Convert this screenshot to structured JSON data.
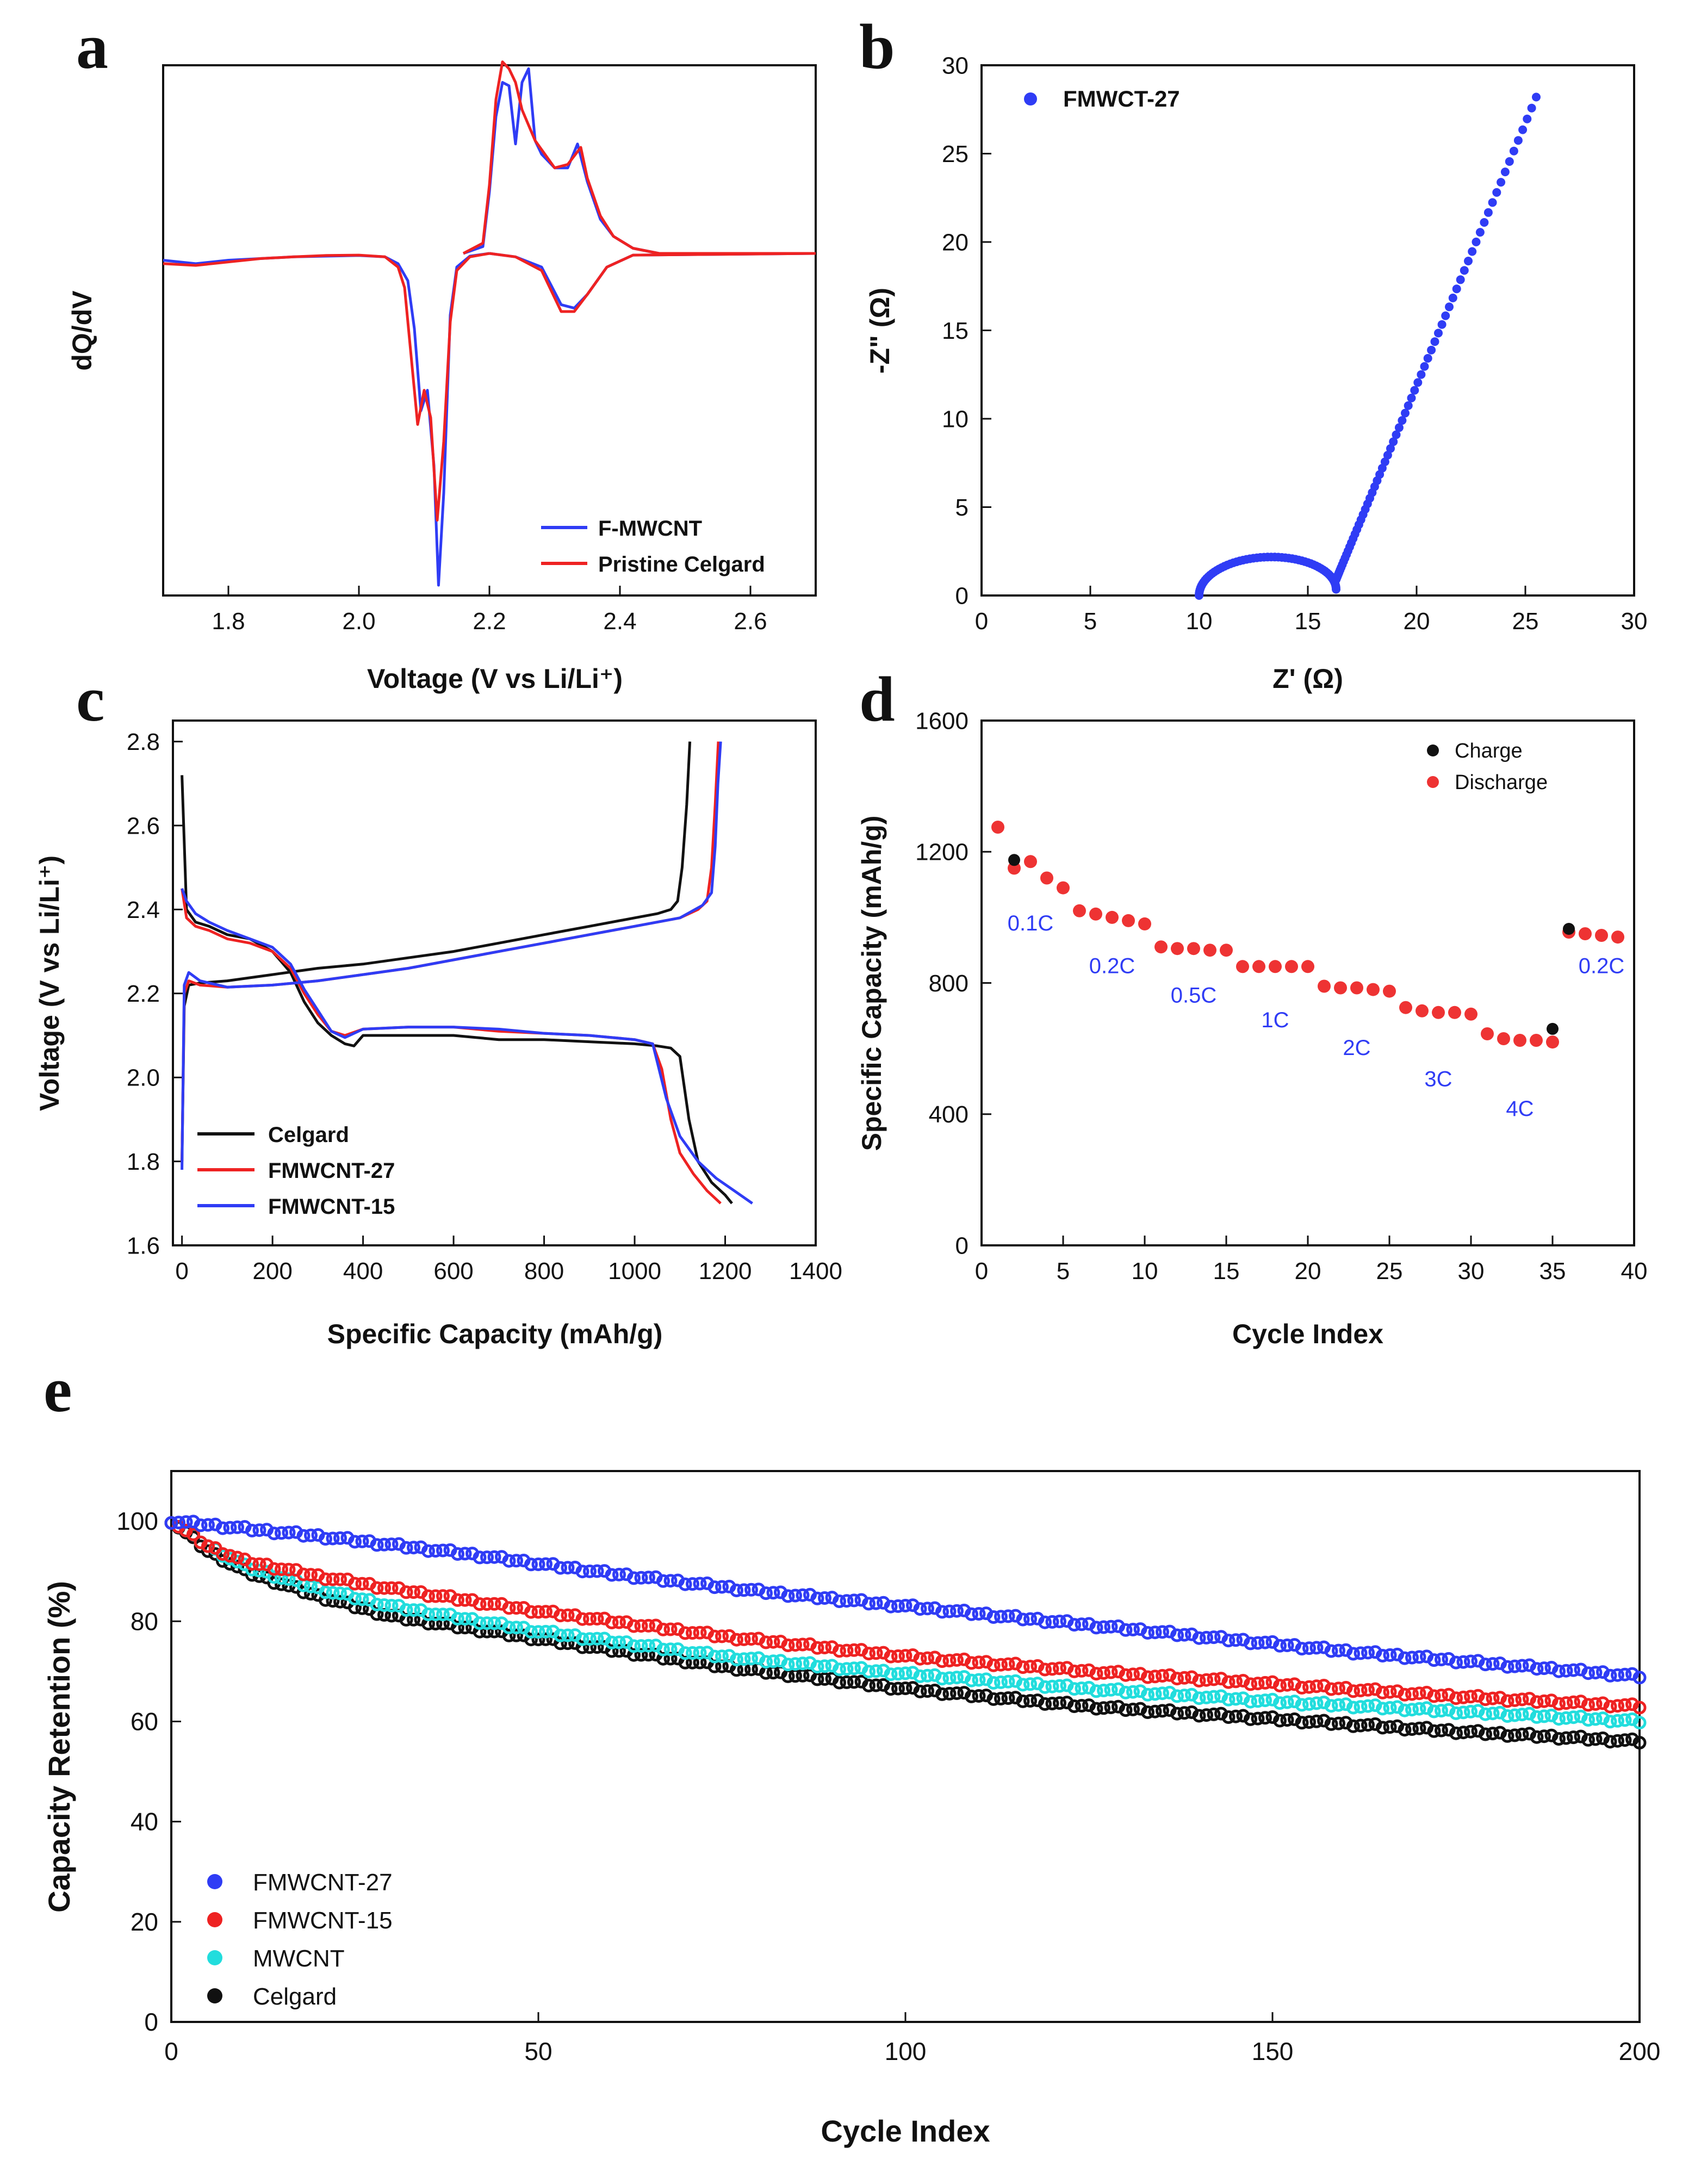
{
  "chart_data": [
    {
      "id": "a",
      "panel_label": "a",
      "type": "line",
      "xlabel": "Voltage (V vs Li/Li⁺)",
      "ylabel": "dQ/dV",
      "xlim": [
        1.7,
        2.7
      ],
      "ylim": [
        -1.0,
        0.55
      ],
      "xticks": [
        1.8,
        2.0,
        2.2,
        2.4,
        2.6
      ],
      "xtick_labels": [
        "1.8",
        "2.0",
        "2.2",
        "2.4",
        "2.6"
      ],
      "legend_position": "bottom-right",
      "series": [
        {
          "name": "F-MWCNT",
          "color": "#2f3cf5",
          "x": [
            1.7,
            1.75,
            1.8,
            1.85,
            1.9,
            1.95,
            2.0,
            2.04,
            2.06,
            2.075,
            2.085,
            2.095,
            2.105,
            2.115,
            2.122,
            2.13,
            2.14,
            2.15,
            2.17,
            2.2
          ],
          "y": [
            -0.02,
            -0.03,
            -0.02,
            -0.015,
            -0.01,
            -0.008,
            -0.006,
            -0.01,
            -0.03,
            -0.08,
            -0.22,
            -0.46,
            -0.4,
            -0.62,
            -0.97,
            -0.7,
            -0.18,
            -0.04,
            -0.008,
            0.0
          ]
        },
        {
          "name": "F-MWCNT charge",
          "color": "#2f3cf5",
          "x": [
            2.16,
            2.19,
            2.2,
            2.21,
            2.22,
            2.23,
            2.24,
            2.25,
            2.26,
            2.27,
            2.28,
            2.3,
            2.32,
            2.335,
            2.35,
            2.37,
            2.39,
            2.42,
            2.46,
            2.7
          ],
          "y": [
            0.0,
            0.02,
            0.18,
            0.4,
            0.5,
            0.49,
            0.32,
            0.5,
            0.54,
            0.33,
            0.29,
            0.25,
            0.25,
            0.32,
            0.21,
            0.1,
            0.05,
            0.015,
            0.0,
            0.0
          ]
        },
        {
          "name": "F-MWCNT discharge 2",
          "color": "#2f3cf5",
          "x": [
            2.2,
            2.24,
            2.28,
            2.31,
            2.33,
            2.35,
            2.38,
            2.42,
            2.7
          ],
          "y": [
            0.0,
            -0.01,
            -0.04,
            -0.15,
            -0.16,
            -0.12,
            -0.04,
            -0.005,
            0.0
          ]
        },
        {
          "name": "Pristine Celgard",
          "color": "#ee2222",
          "x": [
            1.7,
            1.75,
            1.8,
            1.85,
            1.9,
            1.95,
            2.0,
            2.04,
            2.06,
            2.07,
            2.08,
            2.09,
            2.1,
            2.11,
            2.12,
            2.13,
            2.14,
            2.15,
            2.17,
            2.2
          ],
          "y": [
            -0.03,
            -0.035,
            -0.025,
            -0.015,
            -0.01,
            -0.006,
            -0.005,
            -0.01,
            -0.04,
            -0.1,
            -0.3,
            -0.5,
            -0.4,
            -0.48,
            -0.78,
            -0.55,
            -0.2,
            -0.05,
            -0.01,
            0.0
          ]
        },
        {
          "name": "Pristine Celgard charge",
          "color": "#ee2222",
          "x": [
            2.16,
            2.19,
            2.2,
            2.21,
            2.22,
            2.23,
            2.24,
            2.25,
            2.27,
            2.3,
            2.32,
            2.34,
            2.35,
            2.37,
            2.39,
            2.42,
            2.46,
            2.7
          ],
          "y": [
            0.0,
            0.03,
            0.2,
            0.45,
            0.56,
            0.54,
            0.5,
            0.42,
            0.33,
            0.25,
            0.26,
            0.31,
            0.22,
            0.11,
            0.05,
            0.015,
            0.0,
            0.0
          ]
        },
        {
          "name": "Pristine Celgard discharge 2",
          "color": "#ee2222",
          "x": [
            2.2,
            2.24,
            2.28,
            2.31,
            2.33,
            2.35,
            2.38,
            2.42,
            2.7
          ],
          "y": [
            0.0,
            -0.01,
            -0.05,
            -0.17,
            -0.17,
            -0.12,
            -0.04,
            -0.005,
            0.0
          ]
        }
      ],
      "legend": [
        {
          "name": "F-MWCNT",
          "color": "#2f3cf5"
        },
        {
          "name": "Pristine Celgard",
          "color": "#ee2222"
        }
      ]
    },
    {
      "id": "b",
      "panel_label": "b",
      "type": "scatter",
      "xlabel": "Z' (Ω)",
      "ylabel": "-Z\" (Ω)",
      "xlim": [
        0,
        30
      ],
      "ylim": [
        0,
        30
      ],
      "xticks": [
        0,
        5,
        10,
        15,
        20,
        25,
        30
      ],
      "xtick_labels": [
        "0",
        "5",
        "10",
        "15",
        "20",
        "25",
        "30"
      ],
      "yticks": [
        0,
        5,
        10,
        15,
        20,
        25,
        30
      ],
      "ytick_labels": [
        "0",
        "5",
        "10",
        "15",
        "20",
        "25",
        "30"
      ],
      "legend_position": "top-left",
      "series": [
        {
          "name": "FMWCT-27",
          "color": "#2f3cf5",
          "semicircle": {
            "x_start": 10.0,
            "x_end": 16.3,
            "peak": 2.0
          },
          "tail": {
            "x_start": 16.3,
            "y_start": 0.9,
            "x_end": 25.5,
            "y_end": 28.2
          }
        }
      ],
      "legend": [
        {
          "name": "FMWCT-27",
          "color": "#2f3cf5"
        }
      ]
    },
    {
      "id": "c",
      "panel_label": "c",
      "type": "line",
      "xlabel": "Specific Capacity (mAh/g)",
      "ylabel": "Voltage (V vs Li/Li⁺)",
      "xlim": [
        -20,
        1400
      ],
      "ylim": [
        1.6,
        2.85
      ],
      "xticks": [
        0,
        200,
        400,
        600,
        800,
        1000,
        1200,
        1400
      ],
      "xtick_labels": [
        "0",
        "200",
        "400",
        "600",
        "800",
        "1000",
        "1200",
        "1400"
      ],
      "yticks": [
        1.6,
        1.8,
        2.0,
        2.2,
        2.4,
        2.6,
        2.8
      ],
      "ytick_labels": [
        "1.6",
        "1.8",
        "2.0",
        "2.2",
        "2.4",
        "2.6",
        "2.8"
      ],
      "legend_position": "bottom-left",
      "series": [
        {
          "name": "Celgard discharge",
          "color": "#111111",
          "x": [
            0,
            10,
            30,
            60,
            100,
            150,
            200,
            240,
            270,
            300,
            330,
            360,
            380,
            400,
            500,
            600,
            700,
            800,
            900,
            1000,
            1050,
            1080,
            1100,
            1120,
            1140,
            1170,
            1200,
            1215
          ],
          "y": [
            2.72,
            2.4,
            2.37,
            2.36,
            2.34,
            2.33,
            2.3,
            2.25,
            2.18,
            2.13,
            2.1,
            2.08,
            2.075,
            2.1,
            2.1,
            2.1,
            2.09,
            2.09,
            2.085,
            2.08,
            2.075,
            2.07,
            2.05,
            1.9,
            1.8,
            1.75,
            1.72,
            1.7
          ]
        },
        {
          "name": "Celgard charge",
          "color": "#111111",
          "x": [
            0,
            5,
            15,
            40,
            100,
            200,
            300,
            400,
            500,
            600,
            700,
            800,
            900,
            1000,
            1050,
            1080,
            1095,
            1105,
            1115,
            1122
          ],
          "y": [
            1.8,
            2.17,
            2.22,
            2.225,
            2.23,
            2.245,
            2.26,
            2.27,
            2.285,
            2.3,
            2.32,
            2.34,
            2.36,
            2.38,
            2.39,
            2.4,
            2.42,
            2.5,
            2.65,
            2.8
          ]
        },
        {
          "name": "FMWCNT-27 discharge",
          "color": "#ee2222",
          "x": [
            0,
            10,
            30,
            60,
            100,
            150,
            200,
            240,
            270,
            300,
            330,
            360,
            400,
            500,
            600,
            700,
            800,
            900,
            1000,
            1040,
            1060,
            1080,
            1100,
            1130,
            1160,
            1190
          ],
          "y": [
            2.45,
            2.38,
            2.36,
            2.35,
            2.33,
            2.32,
            2.3,
            2.26,
            2.2,
            2.15,
            2.11,
            2.1,
            2.115,
            2.12,
            2.12,
            2.11,
            2.105,
            2.1,
            2.09,
            2.08,
            2.02,
            1.9,
            1.82,
            1.77,
            1.73,
            1.7
          ]
        },
        {
          "name": "FMWCNT-27 charge",
          "color": "#ee2222",
          "x": [
            0,
            5,
            15,
            40,
            100,
            200,
            300,
            400,
            500,
            600,
            700,
            800,
            900,
            1000,
            1100,
            1140,
            1160,
            1170,
            1178,
            1185
          ],
          "y": [
            1.8,
            2.2,
            2.23,
            2.22,
            2.215,
            2.22,
            2.23,
            2.245,
            2.26,
            2.28,
            2.3,
            2.32,
            2.34,
            2.36,
            2.38,
            2.4,
            2.42,
            2.5,
            2.65,
            2.8
          ]
        },
        {
          "name": "FMWCNT-15 discharge",
          "color": "#2f3cf5",
          "x": [
            0,
            10,
            30,
            60,
            100,
            150,
            200,
            240,
            270,
            300,
            330,
            360,
            400,
            500,
            600,
            700,
            800,
            900,
            1000,
            1040,
            1070,
            1100,
            1140,
            1180,
            1220,
            1260
          ],
          "y": [
            2.45,
            2.42,
            2.39,
            2.37,
            2.35,
            2.33,
            2.31,
            2.27,
            2.21,
            2.16,
            2.11,
            2.095,
            2.115,
            2.12,
            2.12,
            2.115,
            2.105,
            2.1,
            2.09,
            2.08,
            1.95,
            1.86,
            1.8,
            1.76,
            1.73,
            1.7
          ]
        },
        {
          "name": "FMWCNT-15 charge",
          "color": "#2f3cf5",
          "x": [
            0,
            5,
            15,
            40,
            100,
            200,
            300,
            400,
            500,
            600,
            700,
            800,
            900,
            1000,
            1100,
            1150,
            1170,
            1178,
            1184,
            1190
          ],
          "y": [
            1.78,
            2.22,
            2.25,
            2.23,
            2.215,
            2.22,
            2.23,
            2.245,
            2.26,
            2.28,
            2.3,
            2.32,
            2.34,
            2.36,
            2.38,
            2.41,
            2.44,
            2.55,
            2.7,
            2.8
          ]
        }
      ],
      "legend": [
        {
          "name": "Celgard",
          "color": "#111111"
        },
        {
          "name": "FMWCNT-27",
          "color": "#ee2222"
        },
        {
          "name": "FMWCNT-15",
          "color": "#2f3cf5"
        }
      ]
    },
    {
      "id": "d",
      "panel_label": "d",
      "type": "scatter",
      "xlabel": "Cycle Index",
      "ylabel": "Specific Capacity (mAh/g)",
      "xlim": [
        0,
        40
      ],
      "ylim": [
        0,
        1600
      ],
      "xticks": [
        0,
        5,
        10,
        15,
        20,
        25,
        30,
        35,
        40
      ],
      "xtick_labels": [
        "0",
        "5",
        "10",
        "15",
        "20",
        "25",
        "30",
        "35",
        "40"
      ],
      "yticks": [
        0,
        400,
        800,
        1200,
        1600
      ],
      "ytick_labels": [
        "0",
        "400",
        "800",
        "1200",
        "1600"
      ],
      "legend_position": "top-right",
      "series": [
        {
          "name": "Charge",
          "color": "#111111",
          "x": [
            2,
            35,
            36
          ],
          "y": [
            1175,
            660,
            965
          ]
        },
        {
          "name": "Discharge",
          "color": "#ee3333",
          "x": [
            1,
            2,
            3,
            4,
            5,
            6,
            7,
            8,
            9,
            10,
            11,
            12,
            13,
            14,
            15,
            16,
            17,
            18,
            19,
            20,
            21,
            22,
            23,
            24,
            25,
            26,
            27,
            28,
            29,
            30,
            31,
            32,
            33,
            34,
            35,
            36,
            37,
            38,
            39
          ],
          "y": [
            1275,
            1150,
            1170,
            1120,
            1090,
            1020,
            1010,
            1000,
            990,
            980,
            910,
            905,
            905,
            900,
            900,
            850,
            850,
            850,
            850,
            850,
            790,
            785,
            785,
            780,
            775,
            725,
            715,
            710,
            710,
            705,
            645,
            630,
            625,
            625,
            620,
            955,
            950,
            945,
            940
          ]
        }
      ],
      "rate_labels": [
        {
          "text": "0.1C",
          "x": 3,
          "y": 960
        },
        {
          "text": "0.2C",
          "x": 8,
          "y": 830
        },
        {
          "text": "0.5C",
          "x": 13,
          "y": 740
        },
        {
          "text": "1C",
          "x": 18,
          "y": 665
        },
        {
          "text": "2C",
          "x": 23,
          "y": 580
        },
        {
          "text": "3C",
          "x": 28,
          "y": 485
        },
        {
          "text": "4C",
          "x": 33,
          "y": 395
        },
        {
          "text": "0.2C",
          "x": 38,
          "y": 830
        }
      ],
      "legend": [
        {
          "name": "Charge",
          "color": "#111111"
        },
        {
          "name": "Discharge",
          "color": "#ee3333"
        }
      ]
    },
    {
      "id": "e",
      "panel_label": "e",
      "type": "scatter",
      "xlabel": "Cycle Index",
      "ylabel": "Capacity Retention (%)",
      "xlim": [
        0,
        200
      ],
      "ylim": [
        0,
        110
      ],
      "xticks": [
        0,
        50,
        100,
        150,
        200
      ],
      "xtick_labels": [
        "0",
        "50",
        "100",
        "150",
        "200"
      ],
      "yticks": [
        0,
        20,
        40,
        60,
        80,
        100
      ],
      "ytick_labels": [
        "0",
        "20",
        "40",
        "60",
        "80",
        "100"
      ],
      "legend_position": "bottom-left",
      "series": [
        {
          "name": "Celgard",
          "color": "#111111",
          "x": [
            0,
            5,
            10,
            20,
            30,
            50,
            75,
            100,
            125,
            150,
            175,
            200
          ],
          "y": [
            100,
            94,
            90,
            85,
            81,
            76.5,
            71,
            66.5,
            63,
            60.5,
            58,
            56
          ]
        },
        {
          "name": "MWCNT",
          "color": "#22dddd",
          "x": [
            0,
            5,
            10,
            20,
            30,
            50,
            75,
            100,
            125,
            150,
            175,
            200
          ],
          "y": [
            100,
            95,
            91,
            86.5,
            83,
            78,
            73,
            69.5,
            66.5,
            64,
            62,
            60
          ]
        },
        {
          "name": "FMWCNT-15",
          "color": "#ee2222",
          "x": [
            0,
            5,
            10,
            20,
            30,
            50,
            75,
            100,
            125,
            150,
            175,
            200
          ],
          "y": [
            100,
            95,
            92,
            89,
            86.5,
            82,
            77,
            73,
            70,
            67.5,
            65,
            63
          ]
        },
        {
          "name": "FMWCNT-27",
          "color": "#2f3cf5",
          "x": [
            0,
            10,
            20,
            40,
            60,
            80,
            100,
            120,
            140,
            160,
            180,
            200
          ],
          "y": [
            100,
            98.5,
            97,
            93.5,
            89.5,
            86,
            83,
            80,
            77,
            74,
            71.5,
            69
          ]
        }
      ],
      "legend": [
        {
          "name": "FMWCNT-27",
          "color": "#2f3cf5"
        },
        {
          "name": "FMWCNT-15",
          "color": "#ee2222"
        },
        {
          "name": "MWCNT",
          "color": "#22dddd"
        },
        {
          "name": "Celgard",
          "color": "#111111"
        }
      ]
    }
  ]
}
